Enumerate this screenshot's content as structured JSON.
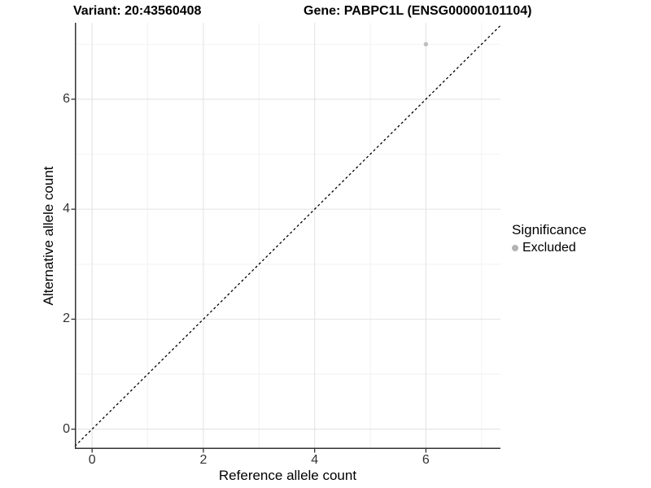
{
  "chart_data": {
    "type": "scatter",
    "title_variant": "Variant: 20:43560408",
    "title_gene": "Gene: PABPC1L (ENSG00000101104)",
    "xlabel": "Reference allele count",
    "ylabel": "Alternative allele count",
    "xlim": [
      -0.31,
      7.34
    ],
    "ylim": [
      -0.36,
      7.39
    ],
    "x_major_ticks": [
      0,
      2,
      4,
      6
    ],
    "y_major_ticks": [
      0,
      2,
      4,
      6
    ],
    "x_minor_ticks": [
      1,
      3,
      5,
      7
    ],
    "y_minor_ticks": [
      1,
      3,
      5,
      7
    ],
    "grid": true,
    "points": [
      {
        "x": 6,
        "y": 7,
        "series": "Excluded"
      }
    ],
    "identity_line": {
      "slope": 1,
      "intercept": 0,
      "style": "dashed"
    },
    "legend": {
      "title": "Significance",
      "position": "right",
      "items": [
        {
          "label": "Excluded",
          "color": "#b3b3b3"
        }
      ]
    },
    "colors": {
      "point": "#bebebe",
      "grid_major": "#e6e6e6",
      "grid_minor": "#f2f2f2",
      "axis_line": "#333333",
      "tick_mark": "#333333",
      "identity_line": "#000000",
      "background": "#ffffff"
    }
  }
}
